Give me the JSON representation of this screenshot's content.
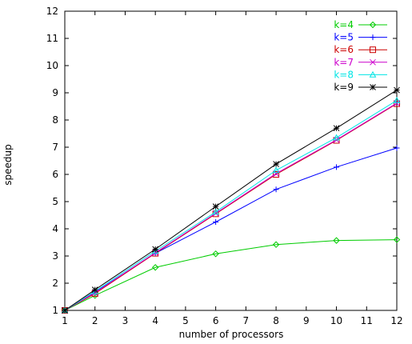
{
  "chart_data": {
    "type": "line",
    "title": "",
    "xlabel": "number of processors",
    "ylabel": "speedup",
    "xlim": [
      1,
      12
    ],
    "ylim": [
      1,
      12
    ],
    "xticks": [
      "1",
      "2",
      "3",
      "4",
      "5",
      "6",
      "7",
      "8",
      "9",
      "10",
      "11",
      "12"
    ],
    "yticks": [
      "1",
      "2",
      "3",
      "4",
      "5",
      "6",
      "7",
      "8",
      "9",
      "10",
      "11",
      "12"
    ],
    "grid": false,
    "legend_position": "top-right",
    "x": [
      1,
      2,
      4,
      6,
      8,
      10,
      12
    ],
    "series": [
      {
        "name": "k=4",
        "color": "#00cc00",
        "marker": "diamond",
        "values": [
          1,
          1.55,
          2.58,
          3.08,
          3.42,
          3.57,
          3.6
        ]
      },
      {
        "name": "k=5",
        "color": "#0000ff",
        "marker": "plus",
        "values": [
          1,
          1.67,
          3.1,
          4.25,
          5.45,
          6.27,
          6.97
        ]
      },
      {
        "name": "k=6",
        "color": "#cc0000",
        "marker": "square",
        "values": [
          1,
          1.62,
          3.1,
          4.55,
          6.0,
          7.25,
          8.6
        ]
      },
      {
        "name": "k=7",
        "color": "#cc00cc",
        "marker": "cross",
        "values": [
          1,
          1.65,
          3.12,
          4.57,
          6.03,
          7.27,
          8.62
        ]
      },
      {
        "name": "k=8",
        "color": "#00e5e5",
        "marker": "triangle",
        "values": [
          1,
          1.7,
          3.18,
          4.62,
          6.15,
          7.35,
          8.72
        ]
      },
      {
        "name": "k=9",
        "color": "#000000",
        "marker": "star",
        "values": [
          1,
          1.76,
          3.25,
          4.82,
          6.38,
          7.7,
          9.1
        ]
      }
    ]
  }
}
